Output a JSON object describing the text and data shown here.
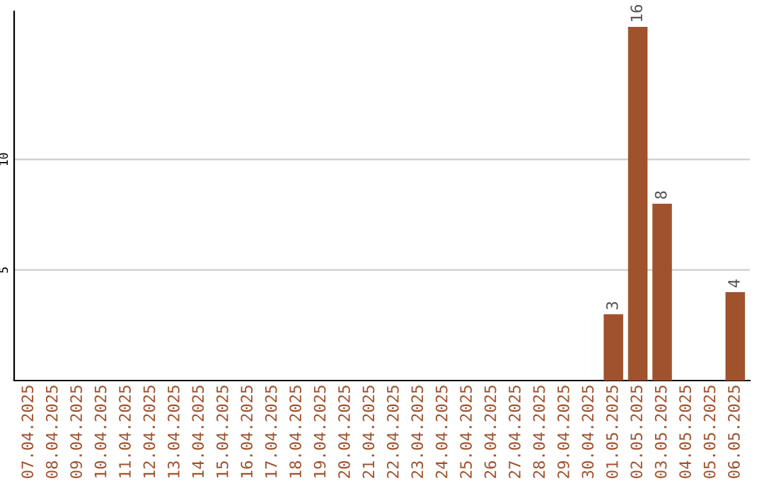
{
  "chart_data": {
    "type": "bar",
    "categories": [
      "07.04.2025",
      "08.04.2025",
      "09.04.2025",
      "10.04.2025",
      "11.04.2025",
      "12.04.2025",
      "13.04.2025",
      "14.04.2025",
      "15.04.2025",
      "16.04.2025",
      "17.04.2025",
      "18.04.2025",
      "19.04.2025",
      "20.04.2025",
      "21.04.2025",
      "22.04.2025",
      "23.04.2025",
      "24.04.2025",
      "25.04.2025",
      "26.04.2025",
      "27.04.2025",
      "28.04.2025",
      "29.04.2025",
      "30.04.2025",
      "01.05.2025",
      "02.05.2025",
      "03.05.2025",
      "04.05.2025",
      "05.05.2025",
      "06.05.2025"
    ],
    "values": [
      0,
      0,
      0,
      0,
      0,
      0,
      0,
      0,
      0,
      0,
      0,
      0,
      0,
      0,
      0,
      0,
      0,
      0,
      0,
      0,
      0,
      0,
      0,
      0,
      3,
      16,
      8,
      0,
      0,
      4
    ],
    "value_labels": [
      null,
      null,
      null,
      null,
      null,
      null,
      null,
      null,
      null,
      null,
      null,
      null,
      null,
      null,
      null,
      null,
      null,
      null,
      null,
      null,
      null,
      null,
      null,
      null,
      "3",
      "16",
      "8",
      null,
      null,
      "4"
    ],
    "color": "#a0522d",
    "ylim": [
      0,
      16.7
    ],
    "yticks": [
      5,
      10
    ],
    "grid": "y"
  }
}
